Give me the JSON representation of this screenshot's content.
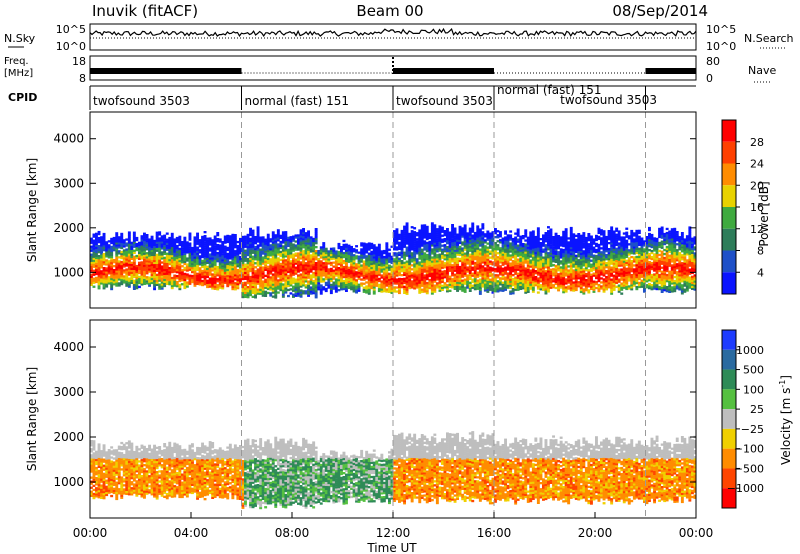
{
  "header": {
    "station": "Inuvik (fitACF)",
    "beam": "Beam 00",
    "date": "08/Sep/2014"
  },
  "noise_panel": {
    "left_label": "N.Sky",
    "right_label": "N.Search",
    "left_ticks": [
      "10^5",
      "10^0"
    ],
    "right_ticks": [
      "10^5",
      "10^0"
    ]
  },
  "freq_panel": {
    "left_label_line1": "Freq.",
    "left_label_line2": "[MHz]",
    "right_label": "Nave",
    "left_ticks": [
      18,
      8
    ],
    "right_ticks": [
      80,
      0
    ]
  },
  "cpid_panel": {
    "label": "CPID",
    "segments": [
      {
        "label": "twofsound 3503",
        "start_h": 0,
        "end_h": 6
      },
      {
        "label": "normal (fast) 151",
        "start_h": 6,
        "end_h": 12
      },
      {
        "label": "twofsound 3503",
        "start_h": 12,
        "end_h": 16
      },
      {
        "label": "normal (fast) 151",
        "start_h": 16,
        "end_h": 22
      },
      {
        "label": "twofsound 3503",
        "start_h": 18.5,
        "end_h": 22
      }
    ]
  },
  "chart_data": [
    {
      "type": "heatmap",
      "name": "power",
      "ylabel": "Slant Range [km]",
      "yticks": [
        1000,
        2000,
        3000,
        4000
      ],
      "ylim": [
        200,
        4600
      ],
      "xlim_h": [
        0,
        24
      ],
      "dashed_times_h": [
        6,
        12,
        16,
        22
      ],
      "colorbar": {
        "label": "Power [dB]",
        "ticks": [
          "4",
          "8",
          "12",
          "16",
          "20",
          "24",
          "28"
        ],
        "colors": [
          "#0a14ff",
          "#1e50c8",
          "#2e7d5a",
          "#3faa3f",
          "#e8d200",
          "#ff8c00",
          "#ff4000",
          "#ff0000"
        ]
      },
      "bands": [
        {
          "start_h": 0,
          "end_h": 6,
          "range_lo": 600,
          "range_hi": 1900
        },
        {
          "start_h": 6,
          "end_h": 9,
          "range_lo": 400,
          "range_hi": 2000
        },
        {
          "start_h": 9,
          "end_h": 12,
          "range_lo": 500,
          "range_hi": 1700
        },
        {
          "start_h": 12,
          "end_h": 16,
          "range_lo": 500,
          "range_hi": 2100
        },
        {
          "start_h": 16,
          "end_h": 24,
          "range_lo": 500,
          "range_hi": 2000
        }
      ]
    },
    {
      "type": "heatmap",
      "name": "velocity",
      "ylabel": "Slant Range [km]",
      "xlabel": "Time UT",
      "yticks": [
        1000,
        2000,
        3000,
        4000
      ],
      "ylim": [
        200,
        4600
      ],
      "xlim_h": [
        0,
        24
      ],
      "xticks": [
        "00:00",
        "04:00",
        "08:00",
        "12:00",
        "16:00",
        "20:00",
        "00:00"
      ],
      "dashed_times_h": [
        6,
        12,
        16,
        22
      ],
      "colorbar": {
        "label": "Velocity [m s",
        "label_sup": "-1",
        "label_end": "]",
        "ticks": [
          "1000",
          "500",
          "100",
          "25",
          "−25",
          "−100",
          "−500",
          "−1000"
        ],
        "colors": [
          "#1e3cff",
          "#2a6aa0",
          "#2e8b57",
          "#55c040",
          "#bebebe",
          "#f0d000",
          "#ff8c00",
          "#ff4500",
          "#ff0000"
        ]
      }
    }
  ]
}
